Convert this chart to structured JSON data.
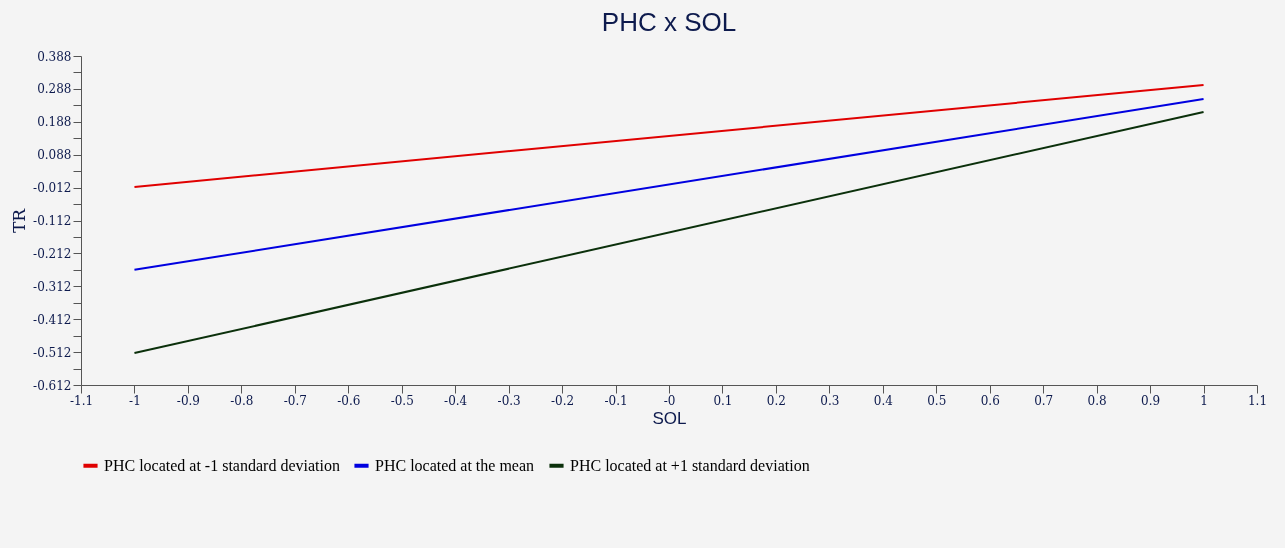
{
  "chart_data": {
    "type": "line",
    "title": "PHC x SOL",
    "xlabel": "SOL",
    "ylabel": "TR",
    "x": [
      -1,
      1
    ],
    "series": [
      {
        "name": "PHC located at -1 standard deviation",
        "color": "#e00000",
        "values": [
          -0.01,
          0.3
        ]
      },
      {
        "name": "PHC located at the mean",
        "color": "#0000e0",
        "values": [
          -0.262,
          0.257
        ]
      },
      {
        "name": "PHC located at +1 standard deviation",
        "color": "#0b300b",
        "values": [
          -0.515,
          0.218
        ]
      }
    ],
    "xlim": [
      -1.1,
      1.1
    ],
    "xticks": [
      -1.1,
      -1,
      -0.9,
      -0.8,
      -0.7,
      -0.6,
      -0.5,
      -0.4,
      -0.3,
      -0.2,
      -0.1,
      {
        "value": 0,
        "label": "-0"
      },
      0.1,
      0.2,
      0.3,
      0.4,
      0.5,
      0.6,
      0.7,
      0.8,
      0.9,
      1,
      1.1
    ],
    "ylim": [
      -0.612,
      0.388
    ],
    "yticks": [
      -0.612,
      {
        "value": -0.562,
        "label": null
      },
      -0.512,
      {
        "value": -0.462,
        "label": null
      },
      -0.412,
      {
        "value": -0.362,
        "label": null
      },
      -0.312,
      {
        "value": -0.262,
        "label": null
      },
      -0.212,
      {
        "value": -0.162,
        "label": null
      },
      -0.112,
      {
        "value": -0.062,
        "label": null
      },
      -0.012,
      {
        "value": 0.038,
        "label": null
      },
      0.088,
      {
        "value": 0.138,
        "label": null
      },
      0.188,
      {
        "value": 0.238,
        "label": null
      },
      0.288,
      {
        "value": 0.338,
        "label": null
      },
      0.388
    ],
    "grid": false,
    "legend": "bottom",
    "marker": "none",
    "line_style": "solid"
  }
}
